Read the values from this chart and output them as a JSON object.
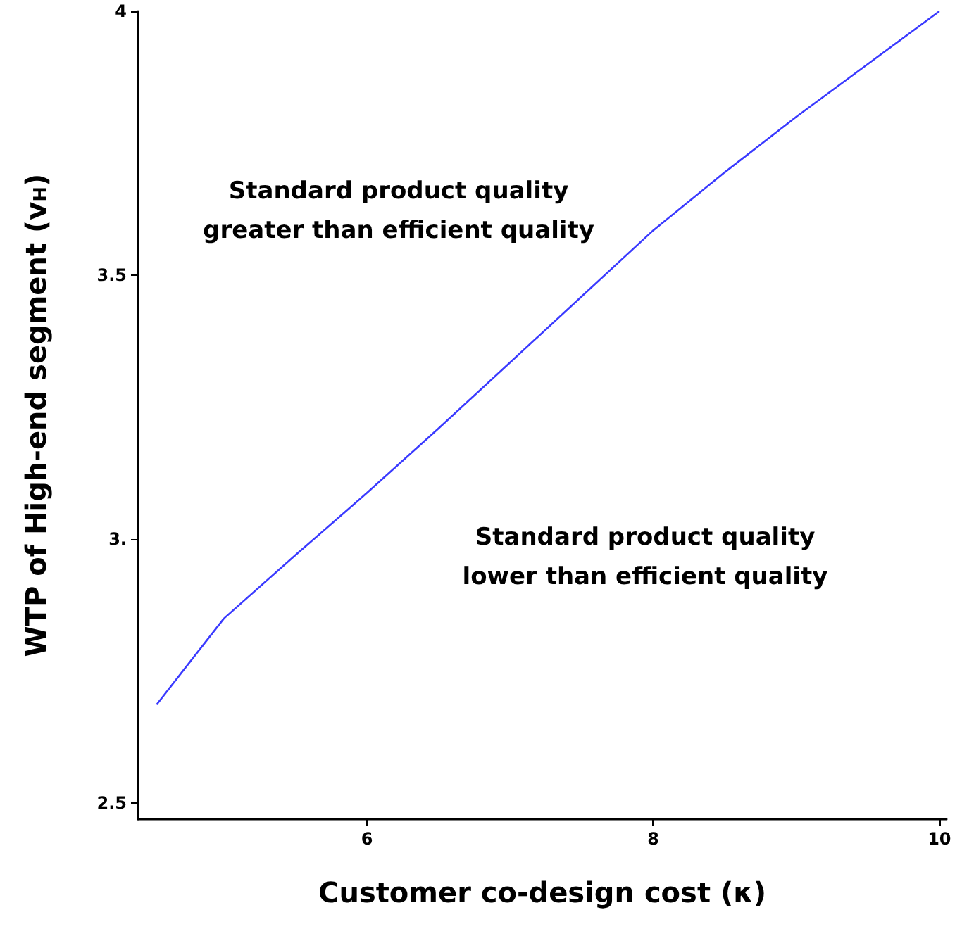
{
  "chart_data": {
    "type": "line",
    "xlabel": "Customer co-design cost (κ)",
    "ylabel": "WTP of High-end segment (v$_{H}$)",
    "x": [
      4.53,
      5,
      5.5,
      6,
      6.5,
      7,
      7.5,
      8,
      8.5,
      9,
      9.5,
      10
    ],
    "series": [
      {
        "color": "#3a3aff",
        "values": [
          2.687,
          2.85,
          2.97,
          3.088,
          3.21,
          3.335,
          3.46,
          3.585,
          3.695,
          3.8,
          3.9,
          4.0
        ]
      }
    ],
    "xlim": [
      4.4,
      10.05
    ],
    "ylim": [
      2.47,
      4.0
    ],
    "xticks": [
      6,
      8,
      10
    ],
    "yticks": [
      2.5,
      {
        "value": 3,
        "label": "3."
      },
      3.5,
      4
    ],
    "annotations": [
      "Standard product quality\ngreater than efficient quality",
      "Standard product quality\nlower than efficient quality"
    ],
    "grid": false,
    "marker": "none",
    "line_style": "solid"
  }
}
